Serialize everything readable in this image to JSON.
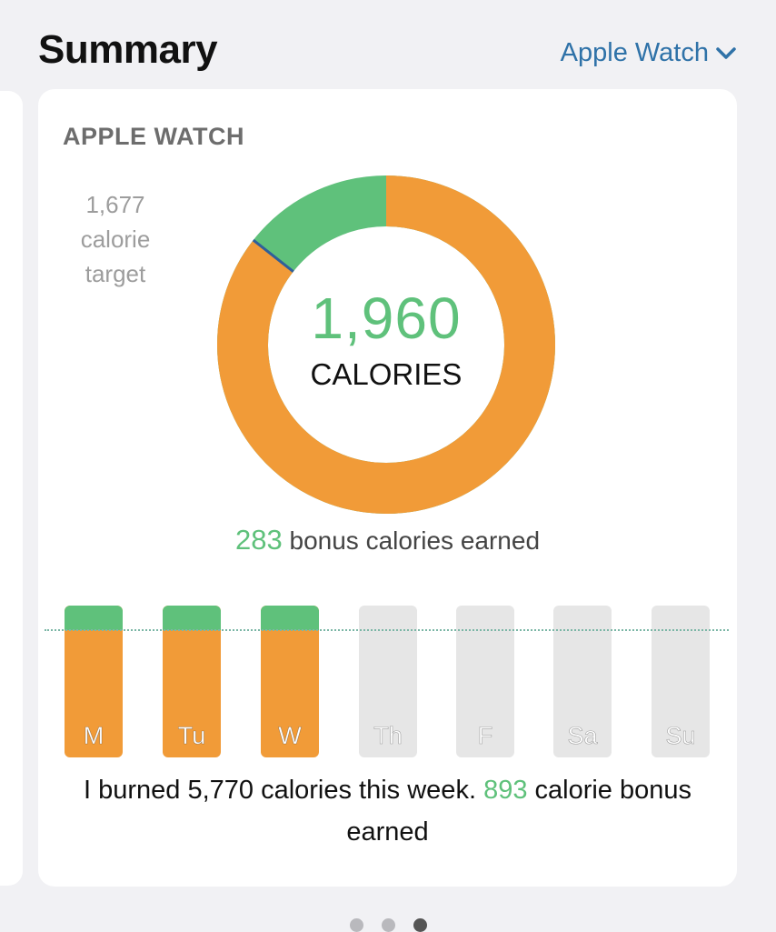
{
  "header": {
    "title": "Summary",
    "source_selector": "Apple Watch"
  },
  "card": {
    "title": "APPLE WATCH",
    "target_value": "1,677",
    "target_label_1": "calorie",
    "target_label_2": "target",
    "total_calories": "1,960",
    "total_label": "CALORIES",
    "bonus_value": "283",
    "bonus_text": " bonus calories earned",
    "ring": {
      "target_fraction": 0.856,
      "colors": {
        "target": "#f19b38",
        "bonus": "#5fc17b",
        "marker": "#2f5f9a",
        "remainder": "#e3e3e3"
      }
    },
    "week": {
      "days": [
        {
          "label": "M",
          "active": true
        },
        {
          "label": "Tu",
          "active": true
        },
        {
          "label": "W",
          "active": true
        },
        {
          "label": "Th",
          "active": false
        },
        {
          "label": "F",
          "active": false
        },
        {
          "label": "Sa",
          "active": false
        },
        {
          "label": "Su",
          "active": false
        }
      ]
    },
    "week_summary_prefix": "I burned 5,770 calories this week. ",
    "week_bonus_value": "893",
    "week_summary_suffix": " calorie bonus earned"
  },
  "pager": {
    "pages": 3,
    "current": 3
  }
}
